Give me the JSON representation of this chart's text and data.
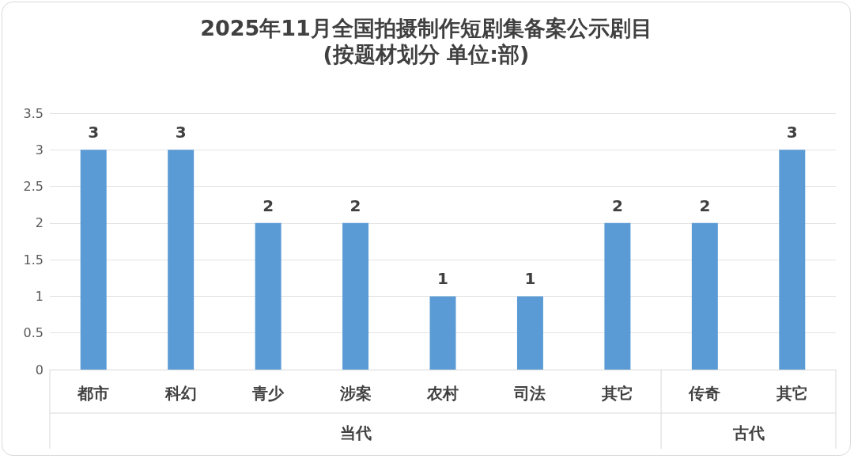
{
  "chart_data": {
    "type": "bar",
    "title": "2025年11月全国拍摄制作短剧集备案公示剧目",
    "subtitle": "(按题材划分 单位:部)",
    "categories": [
      "都市",
      "科幻",
      "青少",
      "涉案",
      "农村",
      "司法",
      "其它",
      "传奇",
      "其它"
    ],
    "values": [
      3,
      3,
      2,
      2,
      1,
      1,
      2,
      2,
      3
    ],
    "color": "#5b9bd5",
    "ylim": [
      0,
      3.5
    ],
    "yticks": [
      0,
      0.5,
      1,
      1.5,
      2,
      2.5,
      3,
      3.5
    ],
    "grid": "y",
    "data_labels": true,
    "annotations": [
      "当代",
      "古代"
    ]
  }
}
